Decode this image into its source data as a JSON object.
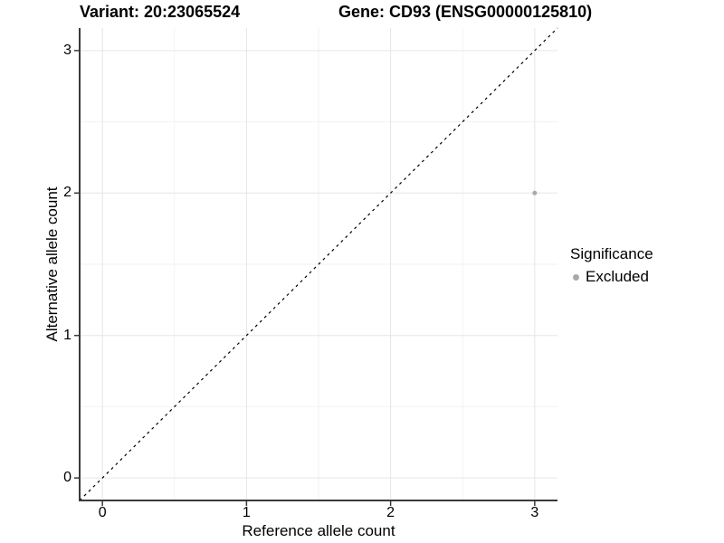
{
  "chart_data": {
    "type": "scatter",
    "title_left": "Variant: 20:23065524",
    "title_right": "Gene: CD93 (ENSG00000125810)",
    "xlabel": "Reference allele count",
    "ylabel": "Alternative allele count",
    "x_ticks": [
      "0",
      "1",
      "2",
      "3"
    ],
    "y_ticks": [
      "0",
      "1",
      "2",
      "3"
    ],
    "x_tick_values": [
      0,
      1,
      2,
      3
    ],
    "y_tick_values": [
      0,
      1,
      2,
      3
    ],
    "xlim": [
      -0.158,
      3.158
    ],
    "ylim": [
      -0.158,
      3.158
    ],
    "grid": true,
    "identity_line": {
      "slope": 1,
      "intercept": 0,
      "style": "dashed",
      "color": "#000000"
    },
    "series": [
      {
        "name": "Excluded",
        "color": "#a9a9a9",
        "points": [
          {
            "x": 3,
            "y": 2
          }
        ]
      }
    ],
    "legend": {
      "title": "Significance",
      "position": "right",
      "items": [
        {
          "label": "Excluded",
          "color": "#a9a9a9"
        }
      ]
    },
    "colors": {
      "axis_line": "#3a3a3a",
      "grid_major": "#e6e6e6",
      "grid_minor": "#f2f2f2",
      "background": "#ffffff"
    }
  }
}
